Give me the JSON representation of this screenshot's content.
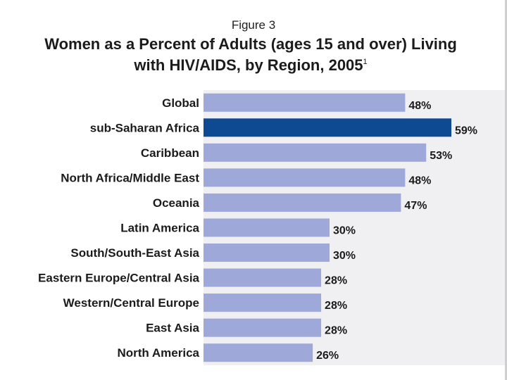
{
  "figure_label": "Figure 3",
  "title_line1": "Women as a Percent of Adults (ages 15 and over) Living",
  "title_line2": "with HIV/AIDS, by Region, 2005",
  "title_footnote": "1",
  "colors": {
    "bar": "#9ea8d9",
    "highlight": "#0d4a92",
    "plot_background": "#f0f0f2"
  },
  "chart_data": {
    "type": "bar",
    "orientation": "horizontal",
    "title": "Women as a Percent of Adults (ages 15 and over) Living with HIV/AIDS, by Region, 2005",
    "categories": [
      "Global",
      "sub-Saharan Africa",
      "Caribbean",
      "North Africa/Middle East",
      "Oceania",
      "Latin America",
      "South/South-East Asia",
      "Eastern Europe/Central Asia",
      "Western/Central Europe",
      "East Asia",
      "North America"
    ],
    "values": [
      48,
      59,
      53,
      48,
      47,
      30,
      30,
      28,
      28,
      28,
      26
    ],
    "value_labels": [
      "48%",
      "59%",
      "53%",
      "48%",
      "47%",
      "30%",
      "30%",
      "28%",
      "28%",
      "28%",
      "26%"
    ],
    "highlighted_category": "sub-Saharan Africa",
    "xlim": [
      0,
      59
    ],
    "grid": false,
    "legend": "none"
  }
}
